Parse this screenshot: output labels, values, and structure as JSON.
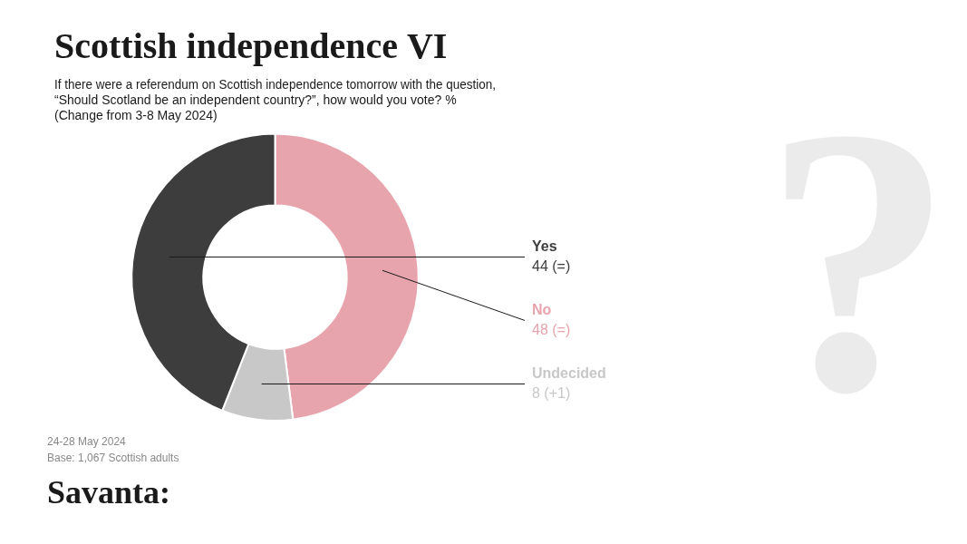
{
  "chart_data": {
    "type": "doughnut",
    "title": "Scottish independence VI",
    "subtitle": [
      "If there were a referendum on Scottish independence tomorrow with the question,",
      "“Should Scotland be an independent country?”, how would you vote? %",
      "(Change from 3-8 May 2024)"
    ],
    "categories": [
      "No",
      "Undecided",
      "Yes"
    ],
    "values": [
      48,
      8,
      44
    ],
    "value_labels": [
      "48 (=)",
      "8 (+1)",
      "44 (=)"
    ],
    "colors": [
      "#e8a4ad",
      "#c8c8c8",
      "#3d3d3d"
    ],
    "data_labels": true,
    "legend": false,
    "annotations": [
      "24-28 May 2024",
      "Base: 1,067 Scottish adults",
      "Savanta:",
      "?"
    ]
  }
}
